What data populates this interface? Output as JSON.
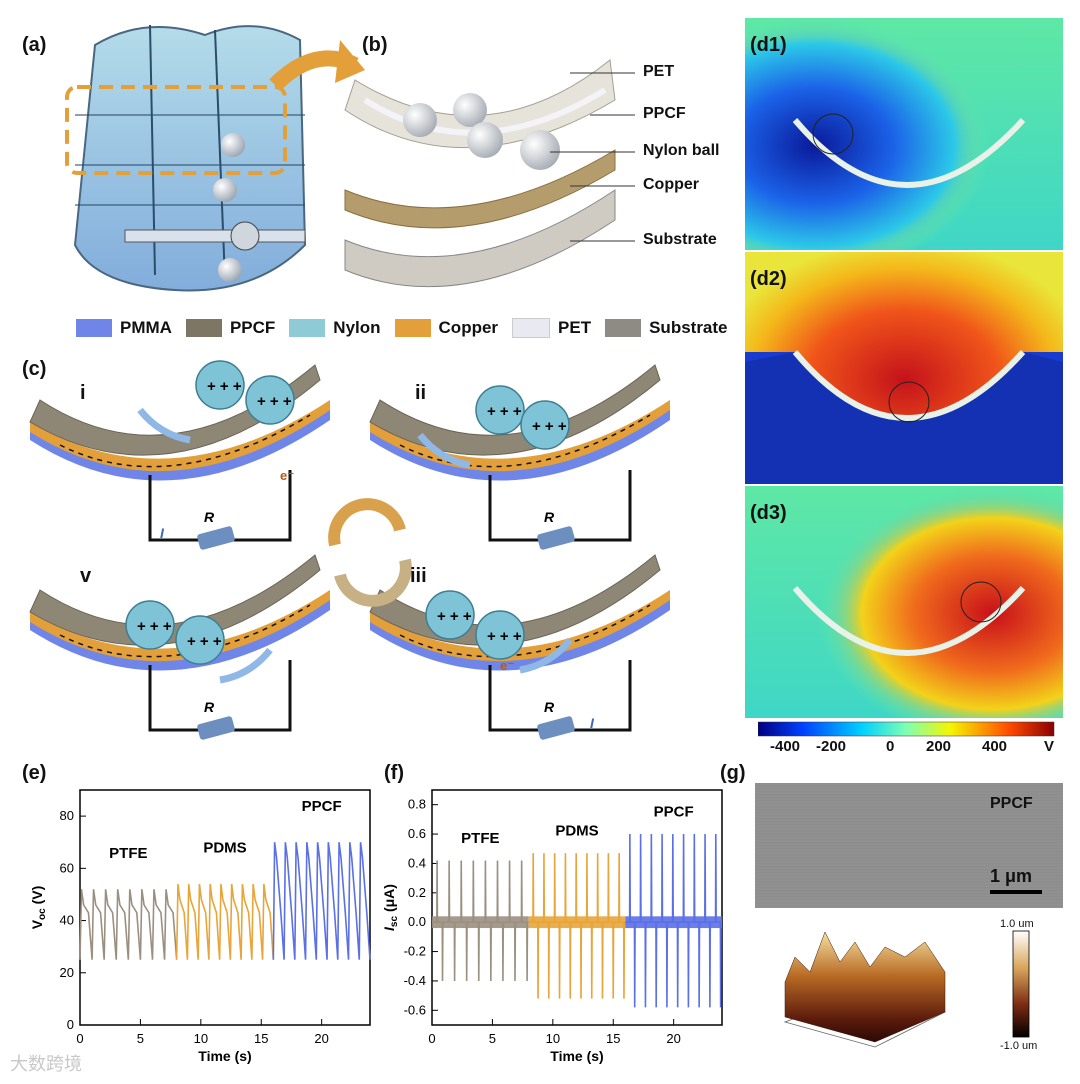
{
  "labels": {
    "a": "(a)",
    "b": "(b)",
    "c": "(c)",
    "d1": "(d1)",
    "d2": "(d2)",
    "d3": "(d3)",
    "e": "(e)",
    "f": "(f)",
    "g": "(g)"
  },
  "layer_callouts": [
    "PET",
    "PPCF",
    "Nylon ball",
    "Copper",
    "Substrate"
  ],
  "legend": [
    {
      "name": "PMMA",
      "color": "#6f86e8"
    },
    {
      "name": "PPCF",
      "color": "#7d7664"
    },
    {
      "name": "Nylon",
      "color": "#8ecbd6"
    },
    {
      "name": "Copper",
      "color": "#e3a03a"
    },
    {
      "name": "PET",
      "color": "#e9e9f2"
    },
    {
      "name": "Substrate",
      "color": "#8e8a84"
    }
  ],
  "stages": {
    "i": "i",
    "ii": "ii",
    "iii": "iii",
    "v": "v"
  },
  "circuit": {
    "resistor": "R",
    "current": "I",
    "electron": "e⁻"
  },
  "colorbar": {
    "ticks": [
      "-400",
      "-200",
      "0",
      "200",
      "400"
    ],
    "unit": "V"
  },
  "chart_data": [
    {
      "type": "line",
      "panel": "e",
      "xlabel": "Time (s)",
      "ylabel": "V_oc (V)",
      "ylabel_main": "V",
      "ylabel_sub": "oc",
      "ylabel_unit": " (V)",
      "xlim": [
        0,
        24
      ],
      "ylim": [
        0,
        90
      ],
      "xticks": [
        0,
        5,
        10,
        15,
        20
      ],
      "yticks": [
        0,
        20,
        40,
        60,
        80
      ],
      "series": [
        {
          "name": "PTFE",
          "color": "#9b8f80",
          "x_range": [
            0,
            8
          ],
          "peak": 52,
          "pulses": 8
        },
        {
          "name": "PDMS",
          "color": "#e7a53a",
          "x_range": [
            8,
            16
          ],
          "peak": 54,
          "pulses": 9
        },
        {
          "name": "PPCF",
          "color": "#5b6fe6",
          "x_range": [
            16,
            24
          ],
          "peak": 70,
          "pulses": 9
        }
      ]
    },
    {
      "type": "line",
      "panel": "f",
      "xlabel": "Time (s)",
      "ylabel": "I_sc (μA)",
      "ylabel_main": "I",
      "ylabel_sub": "sc",
      "ylabel_unit": " (μA)",
      "xlim": [
        0,
        24
      ],
      "ylim": [
        -0.7,
        0.9
      ],
      "xticks": [
        0,
        5,
        10,
        15,
        20
      ],
      "yticks": [
        -0.6,
        -0.4,
        -0.2,
        0.0,
        0.2,
        0.4,
        0.6,
        0.8
      ],
      "ytick_labels": [
        "-0.6",
        "-0.4",
        "-0.2",
        "0.0",
        "0.2",
        "0.4",
        "0.6",
        "0.8"
      ],
      "series": [
        {
          "name": "PTFE",
          "color": "#9b8f80",
          "x_range": [
            0,
            8
          ],
          "peak_pos": 0.42,
          "peak_neg": -0.4,
          "pulses": 8
        },
        {
          "name": "PDMS",
          "color": "#e7a53a",
          "x_range": [
            8,
            16
          ],
          "peak_pos": 0.47,
          "peak_neg": -0.52,
          "pulses": 9
        },
        {
          "name": "PPCF",
          "color": "#5b6fe6",
          "x_range": [
            16,
            24
          ],
          "peak_pos": 0.6,
          "peak_neg": -0.58,
          "pulses": 9
        }
      ]
    }
  ],
  "panel_g": {
    "sem_label": "PPCF",
    "scale_bar": "1 μm",
    "afm_top": "1.0 um",
    "afm_bottom": "-1.0 um"
  },
  "watermark": "大数跨境"
}
